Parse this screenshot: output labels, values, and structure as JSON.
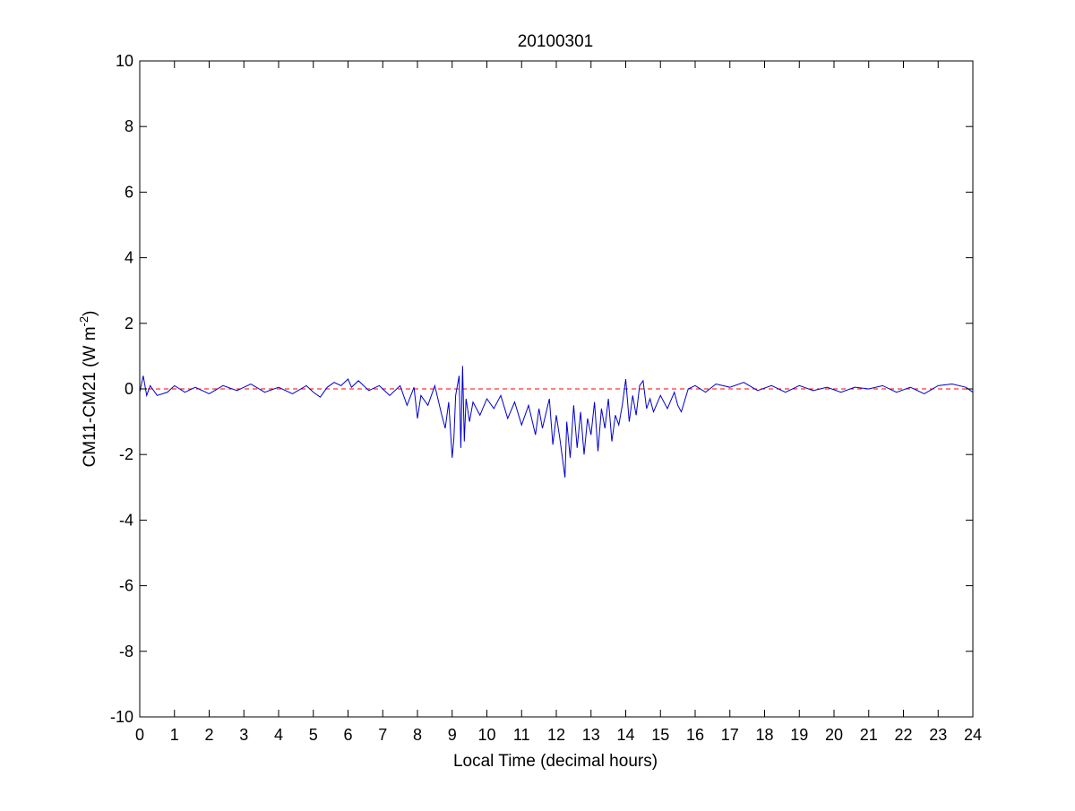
{
  "chart_data": {
    "type": "line",
    "title": "20100301",
    "xlabel": "Local Time (decimal hours)",
    "ylabel": {
      "text": "CM11-CM21 (W m",
      "sup": "-2",
      "tail": ")"
    },
    "xlim": [
      0,
      24
    ],
    "ylim": [
      -10,
      10
    ],
    "xticks": [
      0,
      1,
      2,
      3,
      4,
      5,
      6,
      7,
      8,
      9,
      10,
      11,
      12,
      13,
      14,
      15,
      16,
      17,
      18,
      19,
      20,
      21,
      22,
      23,
      24
    ],
    "yticks": [
      -10,
      -8,
      -6,
      -4,
      -2,
      0,
      2,
      4,
      6,
      8,
      10
    ],
    "grid": false,
    "legend": null,
    "reference_line": {
      "y": 0,
      "color": "#ff0000",
      "style": "dashed"
    },
    "series": [
      {
        "color": "#0000cc",
        "x": [
          0,
          0.1,
          0.2,
          0.3,
          0.5,
          0.8,
          1.0,
          1.3,
          1.6,
          2.0,
          2.4,
          2.8,
          3.2,
          3.6,
          4.0,
          4.4,
          4.8,
          5.0,
          5.2,
          5.4,
          5.6,
          5.8,
          6.0,
          6.1,
          6.3,
          6.6,
          6.9,
          7.2,
          7.5,
          7.7,
          7.9,
          8.0,
          8.1,
          8.3,
          8.5,
          8.7,
          8.8,
          8.9,
          9.0,
          9.05,
          9.1,
          9.2,
          9.25,
          9.3,
          9.35,
          9.4,
          9.5,
          9.6,
          9.8,
          10.0,
          10.2,
          10.4,
          10.6,
          10.8,
          11.0,
          11.2,
          11.4,
          11.5,
          11.6,
          11.8,
          11.9,
          12.0,
          12.1,
          12.2,
          12.25,
          12.3,
          12.4,
          12.5,
          12.6,
          12.7,
          12.8,
          12.9,
          13.0,
          13.1,
          13.2,
          13.3,
          13.4,
          13.5,
          13.6,
          13.7,
          13.8,
          13.9,
          14.0,
          14.1,
          14.2,
          14.3,
          14.4,
          14.5,
          14.6,
          14.7,
          14.8,
          15.0,
          15.2,
          15.4,
          15.5,
          15.6,
          15.8,
          16.0,
          16.3,
          16.6,
          17.0,
          17.4,
          17.8,
          18.2,
          18.6,
          19.0,
          19.4,
          19.8,
          20.2,
          20.6,
          21.0,
          21.4,
          21.8,
          22.2,
          22.6,
          23.0,
          23.4,
          23.8,
          24.0
        ],
        "y": [
          -0.1,
          0.4,
          -0.2,
          0.1,
          -0.2,
          -0.1,
          0.1,
          -0.1,
          0.05,
          -0.15,
          0.1,
          -0.05,
          0.15,
          -0.1,
          0.05,
          -0.15,
          0.1,
          -0.1,
          -0.25,
          0.05,
          0.2,
          0.1,
          0.3,
          0.05,
          0.25,
          -0.05,
          0.1,
          -0.2,
          0.1,
          -0.5,
          0.05,
          -0.9,
          -0.2,
          -0.5,
          0.1,
          -0.8,
          -1.2,
          -0.4,
          -2.1,
          -1.5,
          -0.2,
          0.4,
          -1.8,
          0.7,
          -1.6,
          -0.3,
          -1.0,
          -0.4,
          -0.8,
          -0.3,
          -0.6,
          -0.2,
          -0.9,
          -0.4,
          -1.1,
          -0.5,
          -1.4,
          -0.6,
          -1.2,
          -0.3,
          -1.7,
          -0.8,
          -1.5,
          -2.3,
          -2.7,
          -1.0,
          -2.1,
          -0.5,
          -1.8,
          -0.7,
          -2.0,
          -0.9,
          -1.4,
          -0.4,
          -1.9,
          -0.6,
          -1.2,
          -0.3,
          -1.6,
          -0.8,
          -1.1,
          -0.5,
          0.3,
          -1.0,
          -0.2,
          -0.8,
          0.1,
          0.25,
          -0.6,
          -0.3,
          -0.7,
          -0.2,
          -0.6,
          -0.1,
          -0.5,
          -0.7,
          0.0,
          0.1,
          -0.1,
          0.15,
          0.05,
          0.2,
          -0.05,
          0.1,
          -0.1,
          0.1,
          -0.05,
          0.05,
          -0.1,
          0.05,
          0.0,
          0.1,
          -0.1,
          0.05,
          -0.15,
          0.1,
          0.15,
          0.05,
          -0.1
        ]
      }
    ]
  }
}
